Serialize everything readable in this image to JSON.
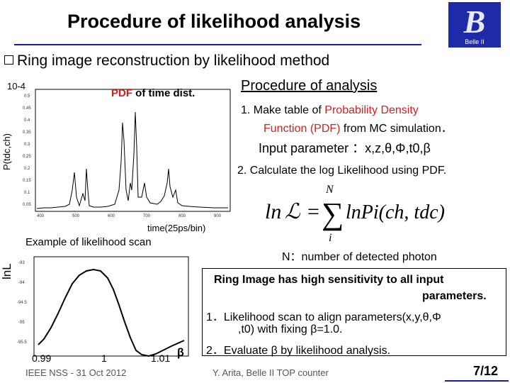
{
  "slide": {
    "title": "Procedure of likelihood analysis",
    "subtitle": "Ring image reconstruction by likelihood method",
    "logo_text": "Belle II"
  },
  "plot_pdf": {
    "exponent_label": "10-4",
    "ylabel": "P(tdc,ch)",
    "label_red": "PDF",
    "label_black": " of time dist.",
    "xlabel": "time(25ps/bin)",
    "x_ticks": [
      "400",
      "500",
      "600",
      "700",
      "800",
      "900"
    ],
    "y_ticks": [
      "0.05",
      "0.1",
      "0.15",
      "0.2",
      "0.25",
      "0.3",
      "0.35",
      "0.4",
      "0.45",
      "0.5"
    ]
  },
  "plot_scan": {
    "title": "Example of likelihood scan",
    "ylabel": "lnL",
    "x_ticks": [
      "0.99",
      "1",
      "1.01"
    ],
    "x_symbol": "β",
    "y_ticks": [
      "-93",
      "-94",
      "-94.5",
      "-95",
      "-95.5"
    ]
  },
  "procedure": {
    "title": "Procedure of analysis",
    "step1_prefix": "1.   Make table of ",
    "step1_red1": "Probability Density",
    "step1_red2": "Function (PDF)",
    "step1_suffix": " from MC simulation．",
    "params": "Input parameter ：x,z,θ,Φ,t0,β",
    "step2": "2.  Calculate the log Likelihood using PDF.",
    "formula_lhs": "ln",
    "formula_rhs": "lnPi(ch, tdc)",
    "formula_sum_top": "N",
    "formula_sum_bottom": "i",
    "n_note": "N：number of detected photon"
  },
  "box": {
    "line1": "Ring Image has high sensitivity to all input",
    "line2": "parameters.",
    "line3": "1．Likelihood scan to align parameters(x,y,θ,Φ",
    "line4": ",t0) with fixing β=1.0.",
    "line5": "2．Evaluate β by likelihood analysis."
  },
  "footer": {
    "left": "IEEE NSS - 31 Oct 2012",
    "middle": "Y. Arita, Belle II TOP counter",
    "page": "7/12"
  },
  "colors": {
    "accent_red": "#d42020",
    "rule_blue": "#1a1aa0"
  }
}
